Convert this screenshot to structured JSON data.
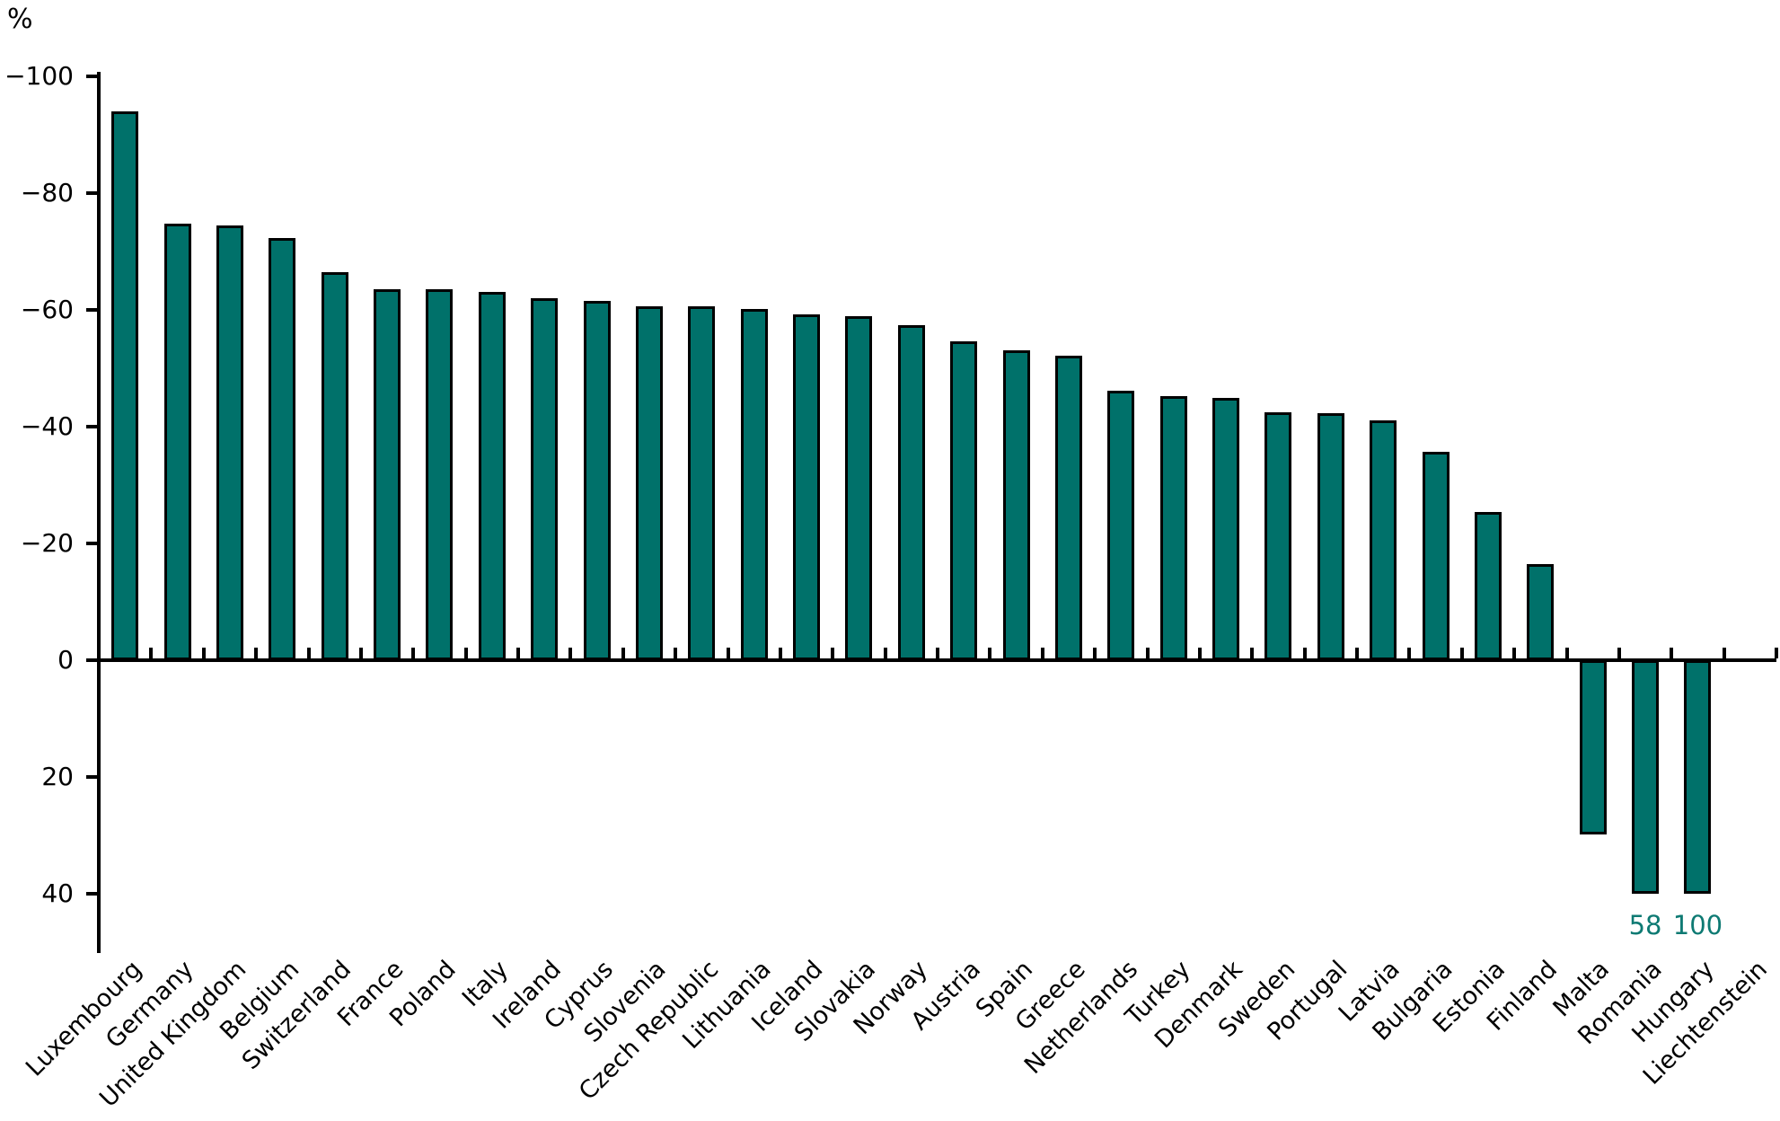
{
  "chart_data": {
    "type": "bar",
    "title": "",
    "unit_label": "%",
    "categories": [
      "Luxembourg",
      "Germany",
      "United Kingdom",
      "Belgium",
      "Switzerland",
      "France",
      "Poland",
      "Italy",
      "Ireland",
      "Cyprus",
      "Slovenia",
      "Czech Republic",
      "Lithuania",
      "Iceland",
      "Slovakia",
      "Norway",
      "Austria",
      "Spain",
      "Greece",
      "Netherlands",
      "Turkey",
      "Denmark",
      "Sweden",
      "Portugal",
      "Latvia",
      "Bulgaria",
      "Estonia",
      "Finland",
      "Malta",
      "Romania",
      "Hungary",
      "Liechtenstein"
    ],
    "values": [
      -94,
      -74.8,
      -74.5,
      -72.3,
      -66.4,
      -63.5,
      -63.5,
      -63.1,
      -62,
      -61.5,
      -60.6,
      -60.6,
      -60.1,
      -59.2,
      -58.9,
      -57.4,
      -54.6,
      -53.1,
      -52.2,
      -46.2,
      -45.3,
      -45,
      -42.5,
      -42.3,
      -41.1,
      -35.7,
      -25.4,
      -16.5,
      29.8,
      58,
      100,
      null
    ],
    "y_axis": {
      "inverted": true,
      "min": -100,
      "max": 40,
      "tick_values": [
        -100,
        -80,
        -60,
        -40,
        -20,
        0,
        20,
        40
      ],
      "tick_labels": [
        "−100",
        "−80",
        "−60",
        "−40",
        "−20",
        "0",
        "20",
        "40"
      ]
    },
    "clip_max": 40,
    "clipped_value_labels": [
      {
        "category": "Romania",
        "label": "58"
      },
      {
        "category": "Hungary",
        "label": "100"
      }
    ],
    "bar_color": "#00716A",
    "bar_outline_color": "#000000",
    "value_label_color": "#0E7A73",
    "axis_color": "#000000",
    "background": "#FFFFFF",
    "grid": false,
    "legend": null
  }
}
